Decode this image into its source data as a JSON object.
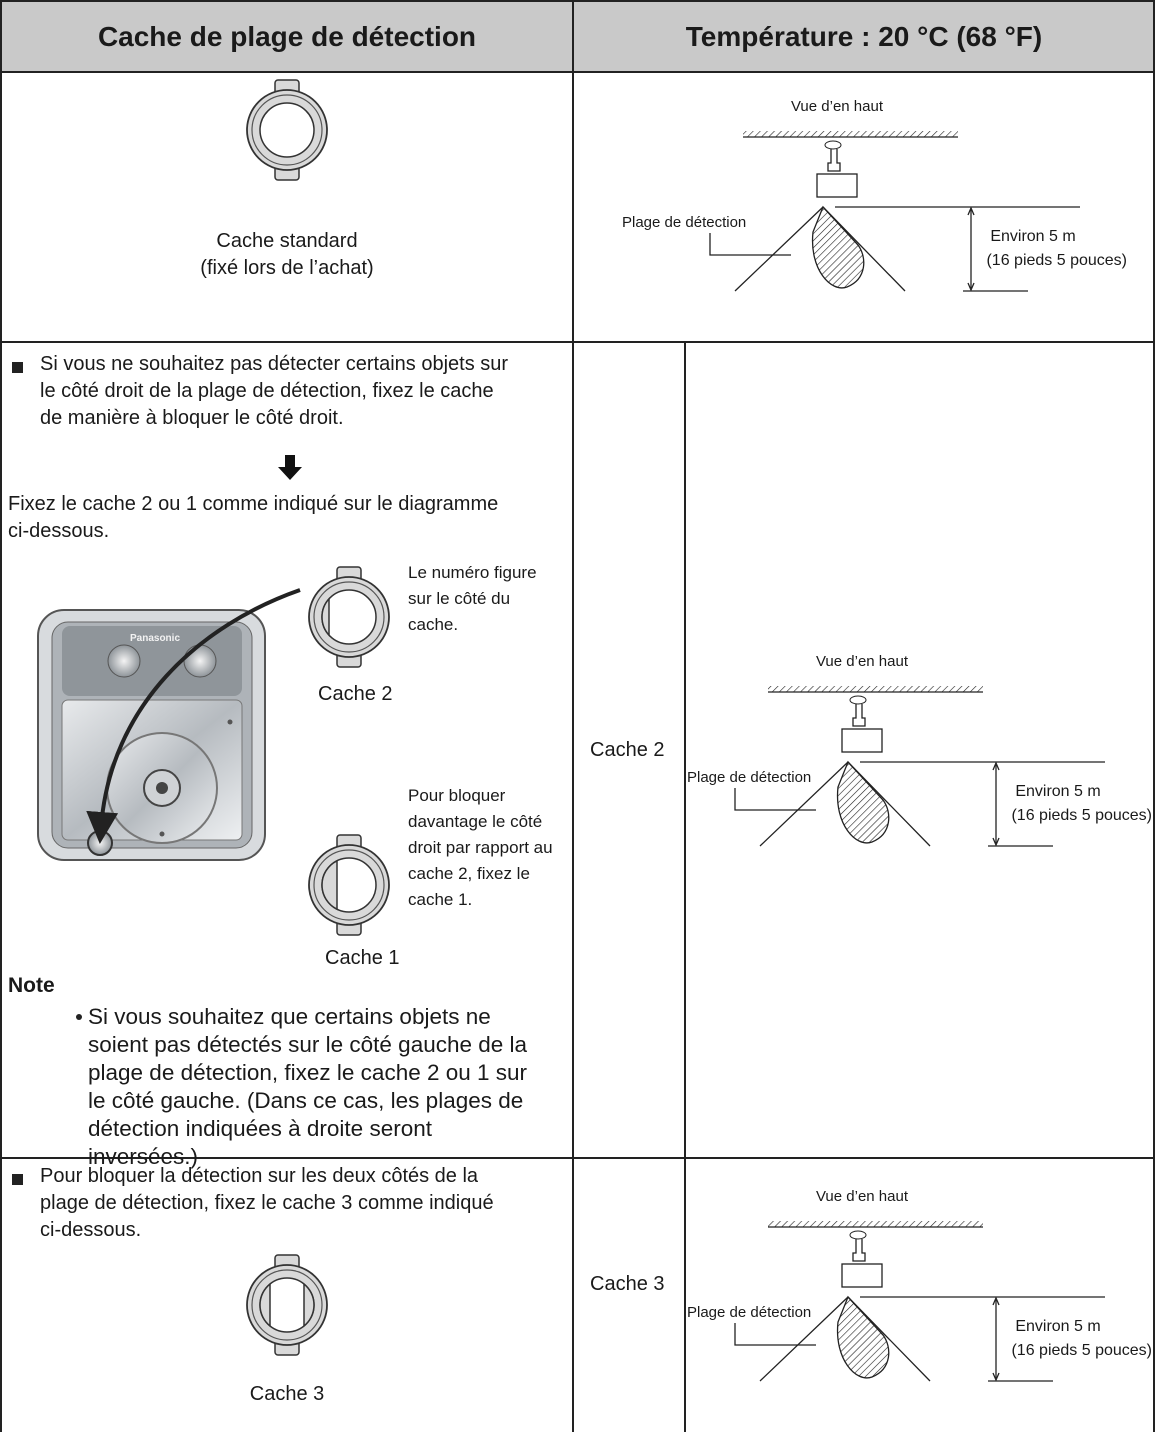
{
  "header": {
    "left": "Cache de plage de détection",
    "right": "Température : 20 °C (68 °F)"
  },
  "rows": [
    {
      "left": {
        "cover_label": [
          "Cache standard",
          "(fixé lors de l’achat)"
        ]
      },
      "right": {
        "diagram": {
          "view": "Vue d’en haut",
          "range": "Plage de détection",
          "distance": "Environ 5 m",
          "distance_imperial": "(16 pieds 5 pouces)"
        }
      }
    },
    {
      "left": {
        "bullet": [
          "Si vous ne souhaitez pas détecter certains objets sur",
          "le côté droit de la plage de détection, fixez le cache",
          "de manière à bloquer le côté droit."
        ],
        "instruction": [
          "Fixez le cache 2 ou 1 comme indiqué sur le diagramme",
          "ci-dessous."
        ],
        "device_brand": "Panasonic",
        "cover_2": {
          "callout": [
            "Le numéro figure",
            "sur le côté du",
            "cache."
          ],
          "label": "Cache 2"
        },
        "cover_1": {
          "callout": [
            "Pour bloquer",
            "davantage le côté",
            "droit par rapport au",
            "cache 2, fixez le",
            "cache 1."
          ],
          "label": "Cache 1"
        },
        "note": {
          "title": "Note",
          "text": [
            "Si vous souhaitez que certains objets ne",
            "soient pas détectés sur le côté gauche de la",
            "plage de détection, fixez le cache 2 ou 1 sur",
            "le côté gauche. (Dans ce cas, les plages de",
            "détection indiquées à droite seront",
            "inversées.)"
          ]
        }
      },
      "right": {
        "label": "Cache 2",
        "diagram": {
          "view": "Vue d’en haut",
          "range": "Plage de détection",
          "distance": "Environ 5 m",
          "distance_imperial": "(16 pieds 5 pouces)"
        }
      }
    },
    {
      "left": {
        "bullet": [
          "Pour bloquer la détection sur les deux côtés de la",
          "plage de détection, fixez le cache 3 comme indiqué",
          "ci-dessous."
        ],
        "cover_label": "Cache 3"
      },
      "right": {
        "label": "Cache 3",
        "diagram": {
          "view": "Vue d’en haut",
          "range": "Plage de détection",
          "distance": "Environ 5 m",
          "distance_imperial": "(16 pieds 5 pouces)"
        }
      }
    }
  ]
}
